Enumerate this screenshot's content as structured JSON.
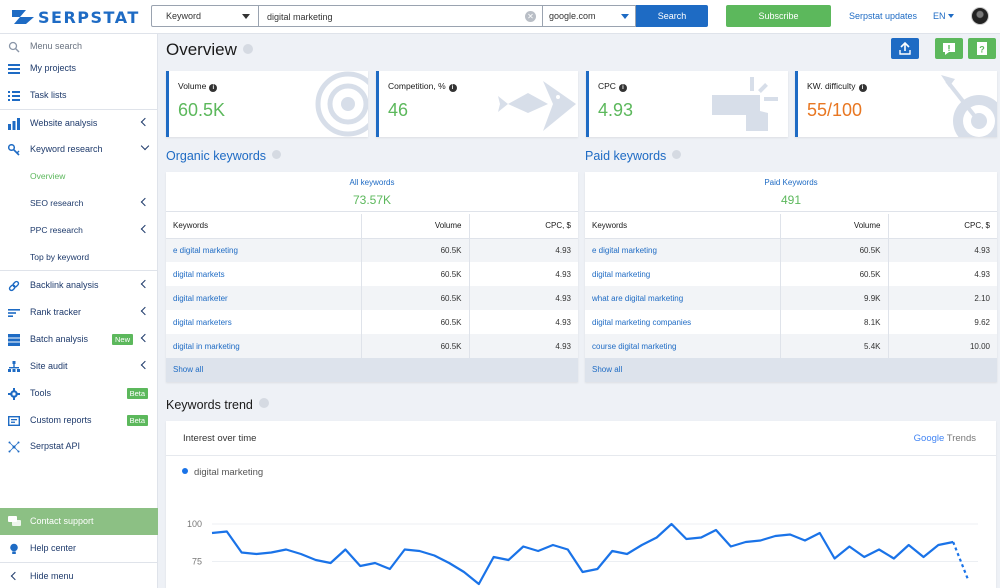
{
  "header": {
    "brand": "SERPSTAT",
    "search_type": "Keyword",
    "search_value": "digital marketing",
    "database": "google.com",
    "search_button": "Search",
    "subscribe_button": "Subscribe",
    "updates_link": "Serpstat updates",
    "language": "EN"
  },
  "sidebar": {
    "menu_search": "Menu search",
    "my_projects": "My projects",
    "task_lists": "Task lists",
    "website_analysis": "Website analysis",
    "keyword_research": "Keyword research",
    "overview": "Overview",
    "seo_research": "SEO research",
    "ppc_research": "PPC research",
    "top_by_keyword": "Top by keyword",
    "backlink_analysis": "Backlink analysis",
    "rank_tracker": "Rank tracker",
    "batch_analysis": "Batch analysis",
    "batch_badge": "New",
    "site_audit": "Site audit",
    "tools": "Tools",
    "tools_badge": "Beta",
    "custom_reports": "Custom reports",
    "custom_badge": "Beta",
    "serpstat_api": "Serpstat API",
    "contact_support": "Contact support",
    "help_center": "Help center",
    "hide_menu": "Hide menu"
  },
  "page": {
    "title": "Overview"
  },
  "kpis": {
    "volume": {
      "label": "Volume",
      "value": "60.5K"
    },
    "competition": {
      "label": "Competition, %",
      "value": "46"
    },
    "cpc": {
      "label": "CPC",
      "value": "4.93"
    },
    "difficulty": {
      "label": "KW. difficulty",
      "value": "55",
      "max": "/100"
    }
  },
  "organic": {
    "title": "Organic keywords",
    "summary_label": "All keywords",
    "summary_value": "73.57K",
    "columns": [
      "Keywords",
      "Volume",
      "CPC, $"
    ],
    "rows": [
      {
        "keyword": "e digital marketing",
        "volume": "60.5K",
        "cpc": "4.93"
      },
      {
        "keyword": "digital markets",
        "volume": "60.5K",
        "cpc": "4.93"
      },
      {
        "keyword": "digital marketer",
        "volume": "60.5K",
        "cpc": "4.93"
      },
      {
        "keyword": "digital marketers",
        "volume": "60.5K",
        "cpc": "4.93"
      },
      {
        "keyword": "digital in marketing",
        "volume": "60.5K",
        "cpc": "4.93"
      }
    ],
    "show_all": "Show all"
  },
  "paid": {
    "title": "Paid keywords",
    "summary_label": "Paid Keywords",
    "summary_value": "491",
    "columns": [
      "Keywords",
      "Volume",
      "CPC, $"
    ],
    "rows": [
      {
        "keyword": "e digital marketing",
        "volume": "60.5K",
        "cpc": "4.93"
      },
      {
        "keyword": "digital marketing",
        "volume": "60.5K",
        "cpc": "4.93"
      },
      {
        "keyword": "what are digital marketing",
        "volume": "9.9K",
        "cpc": "2.10"
      },
      {
        "keyword": "digital marketing companies",
        "volume": "8.1K",
        "cpc": "9.62"
      },
      {
        "keyword": "course digital marketing",
        "volume": "5.4K",
        "cpc": "10.00"
      }
    ],
    "show_all": "Show all"
  },
  "trend": {
    "title": "Keywords trend",
    "card_title": "Interest over time",
    "provider_g": "Google",
    "provider_rest": " Trends",
    "series_name": "digital marketing",
    "color": "#1a73e8"
  },
  "chart_data": {
    "type": "line",
    "title": "Interest over time",
    "series": [
      {
        "name": "digital marketing",
        "values": [
          94,
          95,
          81,
          80,
          81,
          83,
          80,
          76,
          74,
          83,
          72,
          74,
          70,
          83,
          82,
          79,
          74,
          68,
          60,
          78,
          76,
          85,
          82,
          86,
          83,
          68,
          70,
          82,
          80,
          86,
          91,
          100,
          90,
          91,
          96,
          85,
          88,
          89,
          92,
          93,
          89,
          94,
          77,
          85,
          78,
          83,
          77,
          86,
          78,
          86,
          88,
          63
        ]
      }
    ],
    "yticks": [
      75,
      100
    ],
    "ylim": [
      58,
      106
    ]
  }
}
